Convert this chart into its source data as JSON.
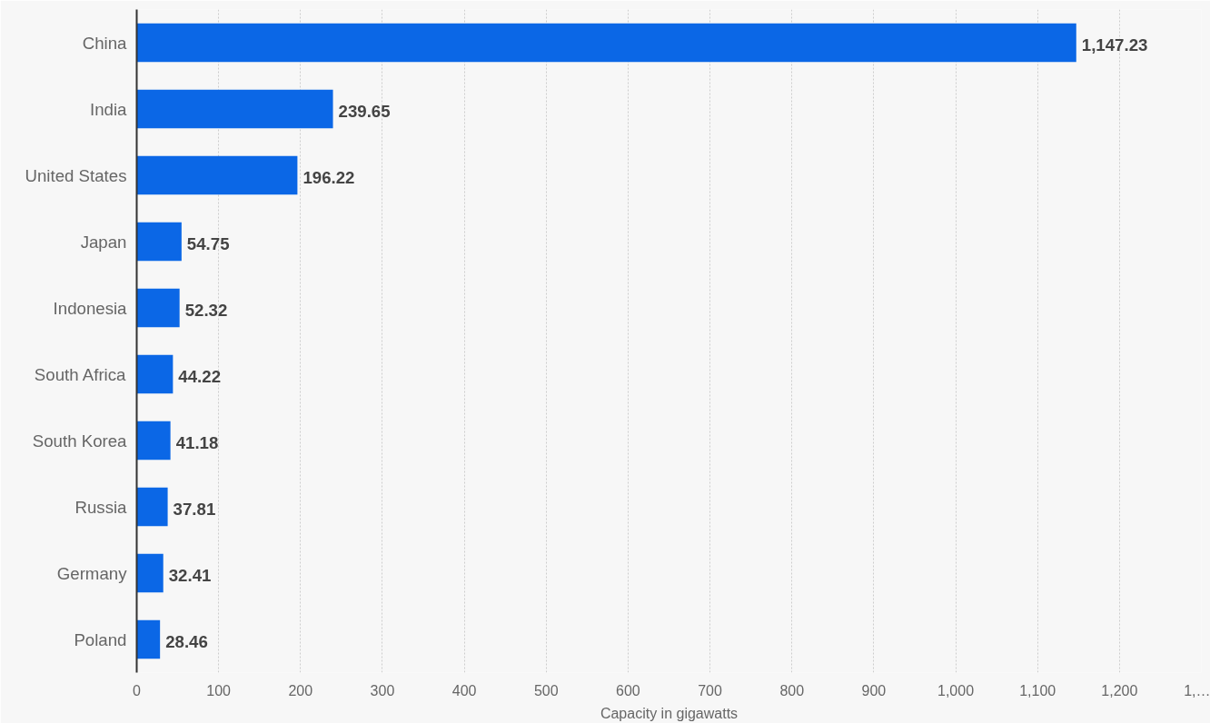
{
  "chart_data": {
    "type": "bar",
    "orientation": "horizontal",
    "xlabel": "Capacity in gigawatts",
    "categories": [
      "China",
      "India",
      "United States",
      "Japan",
      "Indonesia",
      "South Africa",
      "South Korea",
      "Russia",
      "Germany",
      "Poland"
    ],
    "values": [
      1147.23,
      239.65,
      196.22,
      54.75,
      52.32,
      44.22,
      41.18,
      37.81,
      32.41,
      28.46
    ],
    "value_labels": [
      "1,147.23",
      "239.65",
      "196.22",
      "54.75",
      "52.32",
      "44.22",
      "41.18",
      "37.81",
      "32.41",
      "28.46"
    ],
    "color": "#0b67e6",
    "xlim": [
      0,
      1300
    ],
    "xticks": [
      0,
      100,
      200,
      300,
      400,
      500,
      600,
      700,
      800,
      900,
      {
        "value": 1000,
        "label": "1,000"
      },
      {
        "value": 1100,
        "label": "1,100"
      },
      {
        "value": 1200,
        "label": "1,200"
      },
      {
        "value": 1300,
        "label": "1,…"
      }
    ],
    "grid": "x"
  }
}
